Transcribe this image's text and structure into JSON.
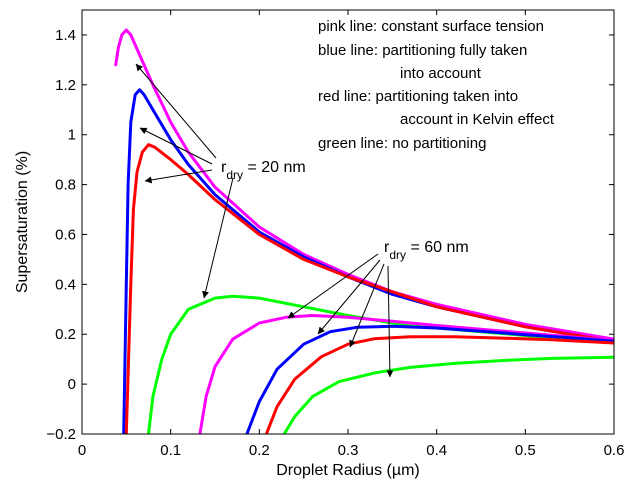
{
  "chart_data": {
    "type": "line",
    "title": "",
    "xlabel": "Droplet Radius (µm)",
    "ylabel": "Supersaturation (%)",
    "xlim": [
      0,
      0.6
    ],
    "ylim": [
      -0.2,
      1.5
    ],
    "xticks": [
      0,
      0.1,
      0.2,
      0.3,
      0.4,
      0.5,
      0.6
    ],
    "xtick_labels": [
      "0",
      "0.1",
      "0.2",
      "0.3",
      "0.4",
      "0.5",
      "0.6"
    ],
    "yticks": [
      -0.2,
      0,
      0.2,
      0.4,
      0.6,
      0.8,
      1.0,
      1.2,
      1.4
    ],
    "ytick_labels": [
      "−0.2",
      "0",
      "0.2",
      "0.4",
      "0.6",
      "0.8",
      "1",
      "1.2",
      "1.4"
    ],
    "grid": false,
    "colors": {
      "pink": "#ff00ff",
      "blue": "#0000ff",
      "red": "#ff0000",
      "green": "#00ff00",
      "frame": "#000000"
    },
    "legend_text": [
      "pink line: constant surface tension",
      "blue line: partitioning fully taken",
      "into account",
      "red line:  partitioning taken into",
      "account in Kelvin effect",
      "green line: no partitioning"
    ],
    "annotations": [
      {
        "main": "r",
        "sub": "dry",
        "tail": " = 20 nm"
      },
      {
        "main": "r",
        "sub": "dry",
        "tail": " = 60 nm"
      }
    ],
    "series": [
      {
        "color": "pink",
        "group": "20 nm",
        "points": [
          [
            0.038,
            1.28
          ],
          [
            0.041,
            1.35
          ],
          [
            0.045,
            1.4
          ],
          [
            0.05,
            1.42
          ],
          [
            0.055,
            1.4
          ],
          [
            0.065,
            1.32
          ],
          [
            0.08,
            1.2
          ],
          [
            0.1,
            1.05
          ],
          [
            0.12,
            0.93
          ],
          [
            0.15,
            0.79
          ],
          [
            0.2,
            0.63
          ],
          [
            0.25,
            0.52
          ],
          [
            0.3,
            0.44
          ],
          [
            0.35,
            0.37
          ],
          [
            0.4,
            0.32
          ],
          [
            0.45,
            0.28
          ],
          [
            0.5,
            0.24
          ],
          [
            0.55,
            0.21
          ],
          [
            0.6,
            0.18
          ]
        ]
      },
      {
        "color": "blue",
        "group": "20 nm",
        "points": [
          [
            0.047,
            -0.2
          ],
          [
            0.05,
            0.4
          ],
          [
            0.052,
            0.8
          ],
          [
            0.055,
            1.05
          ],
          [
            0.06,
            1.16
          ],
          [
            0.065,
            1.18
          ],
          [
            0.07,
            1.16
          ],
          [
            0.08,
            1.1
          ],
          [
            0.1,
            0.98
          ],
          [
            0.12,
            0.88
          ],
          [
            0.15,
            0.76
          ],
          [
            0.2,
            0.61
          ],
          [
            0.25,
            0.51
          ],
          [
            0.3,
            0.43
          ],
          [
            0.35,
            0.36
          ],
          [
            0.4,
            0.31
          ],
          [
            0.45,
            0.27
          ],
          [
            0.5,
            0.23
          ],
          [
            0.55,
            0.2
          ],
          [
            0.6,
            0.17
          ]
        ]
      },
      {
        "color": "red",
        "group": "20 nm",
        "points": [
          [
            0.05,
            -0.2
          ],
          [
            0.055,
            0.4
          ],
          [
            0.058,
            0.7
          ],
          [
            0.062,
            0.85
          ],
          [
            0.068,
            0.93
          ],
          [
            0.075,
            0.96
          ],
          [
            0.082,
            0.95
          ],
          [
            0.1,
            0.9
          ],
          [
            0.12,
            0.84
          ],
          [
            0.15,
            0.74
          ],
          [
            0.2,
            0.6
          ],
          [
            0.25,
            0.5
          ],
          [
            0.3,
            0.43
          ],
          [
            0.35,
            0.37
          ],
          [
            0.4,
            0.31
          ],
          [
            0.45,
            0.27
          ],
          [
            0.5,
            0.23
          ],
          [
            0.55,
            0.2
          ],
          [
            0.6,
            0.17
          ]
        ]
      },
      {
        "color": "green",
        "group": "60 nm",
        "points": [
          [
            0.075,
            -0.2
          ],
          [
            0.08,
            -0.05
          ],
          [
            0.09,
            0.1
          ],
          [
            0.1,
            0.2
          ],
          [
            0.12,
            0.3
          ],
          [
            0.15,
            0.345
          ],
          [
            0.17,
            0.352
          ],
          [
            0.2,
            0.345
          ],
          [
            0.25,
            0.31
          ],
          [
            0.3,
            0.275
          ],
          [
            0.35,
            0.245
          ],
          [
            0.4,
            0.225
          ],
          [
            0.45,
            0.21
          ],
          [
            0.5,
            0.195
          ],
          [
            0.55,
            0.18
          ],
          [
            0.6,
            0.17
          ]
        ]
      },
      {
        "color": "pink",
        "group": "60 nm",
        "points": [
          [
            0.133,
            -0.2
          ],
          [
            0.14,
            -0.05
          ],
          [
            0.15,
            0.07
          ],
          [
            0.17,
            0.18
          ],
          [
            0.2,
            0.245
          ],
          [
            0.23,
            0.268
          ],
          [
            0.26,
            0.275
          ],
          [
            0.3,
            0.268
          ],
          [
            0.35,
            0.252
          ],
          [
            0.4,
            0.235
          ],
          [
            0.45,
            0.22
          ],
          [
            0.5,
            0.205
          ],
          [
            0.55,
            0.19
          ],
          [
            0.6,
            0.175
          ]
        ]
      },
      {
        "color": "blue",
        "group": "60 nm",
        "points": [
          [
            0.186,
            -0.2
          ],
          [
            0.2,
            -0.07
          ],
          [
            0.22,
            0.06
          ],
          [
            0.25,
            0.16
          ],
          [
            0.28,
            0.21
          ],
          [
            0.31,
            0.228
          ],
          [
            0.35,
            0.232
          ],
          [
            0.4,
            0.225
          ],
          [
            0.45,
            0.212
          ],
          [
            0.5,
            0.198
          ],
          [
            0.55,
            0.186
          ],
          [
            0.6,
            0.172
          ]
        ]
      },
      {
        "color": "red",
        "group": "60 nm",
        "points": [
          [
            0.208,
            -0.2
          ],
          [
            0.22,
            -0.09
          ],
          [
            0.24,
            0.02
          ],
          [
            0.27,
            0.11
          ],
          [
            0.3,
            0.16
          ],
          [
            0.33,
            0.182
          ],
          [
            0.37,
            0.19
          ],
          [
            0.42,
            0.19
          ],
          [
            0.47,
            0.185
          ],
          [
            0.53,
            0.178
          ],
          [
            0.6,
            0.165
          ]
        ]
      },
      {
        "color": "green",
        "group": "60 nm",
        "points": [
          [
            0.228,
            -0.2
          ],
          [
            0.24,
            -0.13
          ],
          [
            0.26,
            -0.05
          ],
          [
            0.29,
            0.01
          ],
          [
            0.33,
            0.045
          ],
          [
            0.37,
            0.067
          ],
          [
            0.42,
            0.083
          ],
          [
            0.47,
            0.094
          ],
          [
            0.53,
            0.103
          ],
          [
            0.6,
            0.108
          ]
        ]
      }
    ]
  }
}
